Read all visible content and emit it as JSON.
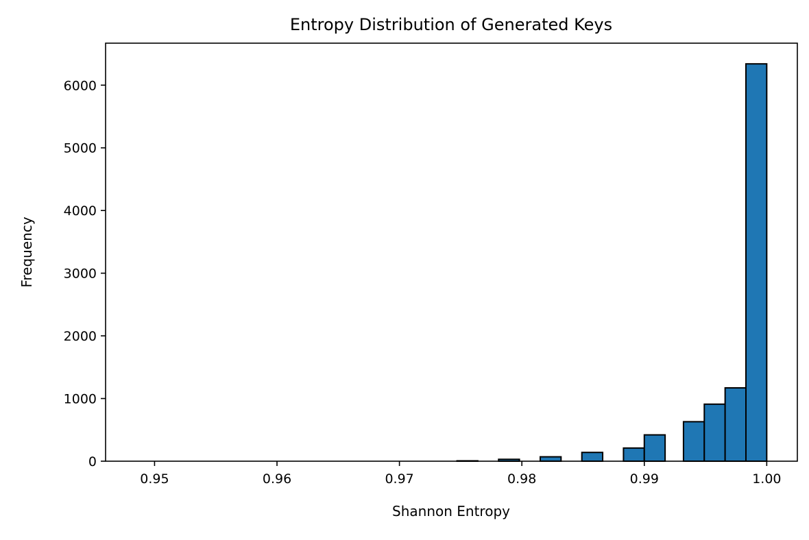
{
  "chart_data": {
    "type": "bar",
    "title": "Entropy Distribution of Generated Keys",
    "xlabel": "Shannon Entropy",
    "ylabel": "Frequency",
    "xlim": [
      0.946,
      1.0025
    ],
    "ylim": [
      0,
      6670
    ],
    "xticks": [
      0.95,
      0.96,
      0.97,
      0.98,
      0.99,
      1.0
    ],
    "xtick_labels": [
      "0.95",
      "0.96",
      "0.97",
      "0.98",
      "0.99",
      "1.00"
    ],
    "yticks": [
      0,
      1000,
      2000,
      3000,
      4000,
      5000,
      6000
    ],
    "ytick_labels": [
      "0",
      "1000",
      "2000",
      "3000",
      "4000",
      "5000",
      "6000"
    ],
    "bin_width": 0.0017,
    "bins": [
      {
        "x0": 0.9747,
        "x1": 0.9764,
        "count": 6
      },
      {
        "x0": 0.9781,
        "x1": 0.9798,
        "count": 30
      },
      {
        "x0": 0.9815,
        "x1": 0.9832,
        "count": 70
      },
      {
        "x0": 0.9849,
        "x1": 0.9866,
        "count": 140
      },
      {
        "x0": 0.9883,
        "x1": 0.99,
        "count": 210
      },
      {
        "x0": 0.99,
        "x1": 0.9917,
        "count": 420
      },
      {
        "x0": 0.9932,
        "x1": 0.9949,
        "count": 630
      },
      {
        "x0": 0.9949,
        "x1": 0.9966,
        "count": 910
      },
      {
        "x0": 0.9966,
        "x1": 0.9983,
        "count": 1170
      },
      {
        "x0": 0.9983,
        "x1": 1.0,
        "count": 6340
      }
    ],
    "bar_color": "#1f77b4",
    "edge_color": "#000000",
    "grid": false
  }
}
